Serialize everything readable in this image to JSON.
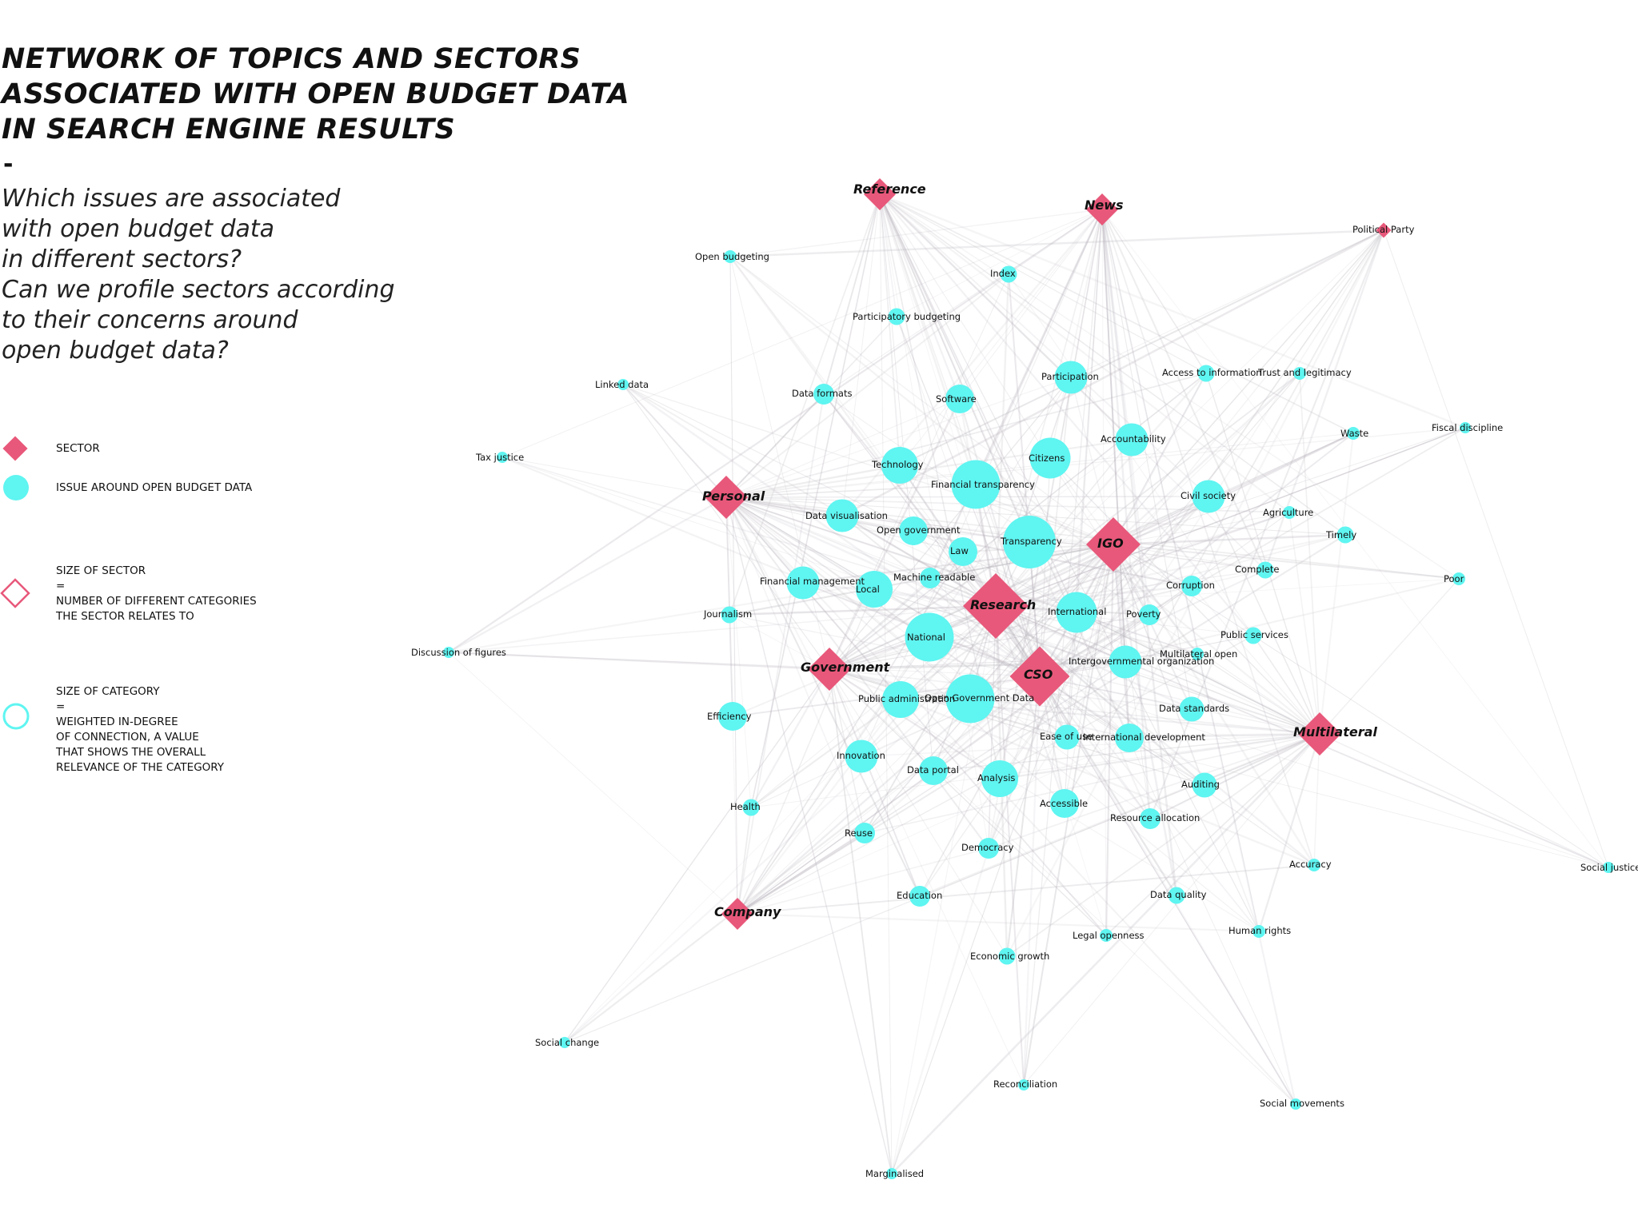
{
  "title": {
    "lines": [
      "NETWORK OF TOPICS AND SECTORS",
      "ASSOCIATED WITH OPEN BUDGET DATA",
      "IN SEARCH ENGINE RESULTS"
    ],
    "dash": "-"
  },
  "subtitle": {
    "lines": [
      "Which issues are associated",
      "with open budget data",
      "in different sectors?",
      "Can we profile sectors according",
      "to their concerns around",
      "open budget data?"
    ]
  },
  "legend": {
    "sector_label": "SECTOR",
    "issue_label": "ISSUE AROUND OPEN BUDGET DATA",
    "sector_size_lines": [
      "SIZE OF SECTOR",
      "=",
      "NUMBER OF DIFFERENT CATEGORIES",
      "THE SECTOR RELATES TO"
    ],
    "category_size_lines": [
      "SIZE OF CATEGORY",
      "=",
      "WEIGHTED IN-DEGREE",
      "OF CONNECTION, A VALUE",
      "THAT SHOWS THE OVERALL",
      "RELEVANCE OF THE CATEGORY"
    ]
  },
  "colors": {
    "sector": "#e8587a",
    "issue": "#5ff5f1",
    "edge": "#b9b4bc",
    "text": "#111111"
  },
  "sectors": [
    {
      "id": "Reference",
      "size": 2
    },
    {
      "id": "News",
      "size": 2
    },
    {
      "id": "Political Party",
      "size": 0.5
    },
    {
      "id": "Personal",
      "size": 3
    },
    {
      "id": "IGO",
      "size": 4
    },
    {
      "id": "Research",
      "size": 5
    },
    {
      "id": "Government",
      "size": 3
    },
    {
      "id": "CSO",
      "size": 4.5
    },
    {
      "id": "Multilateral",
      "size": 3
    },
    {
      "id": "Company",
      "size": 2
    }
  ],
  "issues": [
    {
      "id": "Open budgeting",
      "size": 1
    },
    {
      "id": "Index",
      "size": 1.5
    },
    {
      "id": "Participatory budgeting",
      "size": 1.5
    },
    {
      "id": "Linked data",
      "size": 0.8
    },
    {
      "id": "Data formats",
      "size": 2
    },
    {
      "id": "Software",
      "size": 3
    },
    {
      "id": "Participation",
      "size": 3.5
    },
    {
      "id": "Access to information",
      "size": 1.5
    },
    {
      "id": "Trust and legitimacy",
      "size": 1
    },
    {
      "id": "Waste",
      "size": 1
    },
    {
      "id": "Fiscal discipline",
      "size": 0.8
    },
    {
      "id": "Tax justice",
      "size": 0.8
    },
    {
      "id": "Accountability",
      "size": 3.5
    },
    {
      "id": "Technology",
      "size": 4
    },
    {
      "id": "Citizens",
      "size": 4.5
    },
    {
      "id": "Financial transparency",
      "size": 5.5
    },
    {
      "id": "Civil society",
      "size": 3.5
    },
    {
      "id": "Agriculture",
      "size": 1
    },
    {
      "id": "Data visualisation",
      "size": 3.5
    },
    {
      "id": "Open government",
      "size": 3
    },
    {
      "id": "Transparency",
      "size": 6
    },
    {
      "id": "Timely",
      "size": 1.5
    },
    {
      "id": "Law",
      "size": 3
    },
    {
      "id": "Machine readable",
      "size": 2
    },
    {
      "id": "Complete",
      "size": 1.5
    },
    {
      "id": "Poor",
      "size": 1
    },
    {
      "id": "Financial management",
      "size": 3.5
    },
    {
      "id": "Local",
      "size": 4
    },
    {
      "id": "Corruption",
      "size": 2
    },
    {
      "id": "Journalism",
      "size": 1.5
    },
    {
      "id": "International",
      "size": 4.5
    },
    {
      "id": "Poverty",
      "size": 2
    },
    {
      "id": "National",
      "size": 5.5
    },
    {
      "id": "Public services",
      "size": 1.5
    },
    {
      "id": "Discussion of figures",
      "size": 0.8
    },
    {
      "id": "Multilateral open",
      "size": 1
    },
    {
      "id": "Intergovernmental organization",
      "size": 3.5
    },
    {
      "id": "Open Government Data",
      "size": 5.5
    },
    {
      "id": "Public administration",
      "size": 4
    },
    {
      "id": "Efficiency",
      "size": 3
    },
    {
      "id": "Data standards",
      "size": 2.5
    },
    {
      "id": "Ease of use",
      "size": 2.5
    },
    {
      "id": "International development",
      "size": 3
    },
    {
      "id": "Innovation",
      "size": 3.5
    },
    {
      "id": "Data portal",
      "size": 3
    },
    {
      "id": "Analysis",
      "size": 4
    },
    {
      "id": "Health",
      "size": 1.5
    },
    {
      "id": "Auditing",
      "size": 2.5
    },
    {
      "id": "Accessible",
      "size": 3
    },
    {
      "id": "Resource allocation",
      "size": 2
    },
    {
      "id": "Reuse",
      "size": 2
    },
    {
      "id": "Democracy",
      "size": 2
    },
    {
      "id": "Accuracy",
      "size": 1
    },
    {
      "id": "Social justice",
      "size": 0.8
    },
    {
      "id": "Education",
      "size": 2
    },
    {
      "id": "Data quality",
      "size": 1.5
    },
    {
      "id": "Human rights",
      "size": 1
    },
    {
      "id": "Legal openness",
      "size": 1
    },
    {
      "id": "Economic growth",
      "size": 1.5
    },
    {
      "id": "Social change",
      "size": 0.8
    },
    {
      "id": "Reconciliation",
      "size": 0.8
    },
    {
      "id": "Social movements",
      "size": 0.8
    },
    {
      "id": "Marginalised",
      "size": 0.8
    }
  ]
}
